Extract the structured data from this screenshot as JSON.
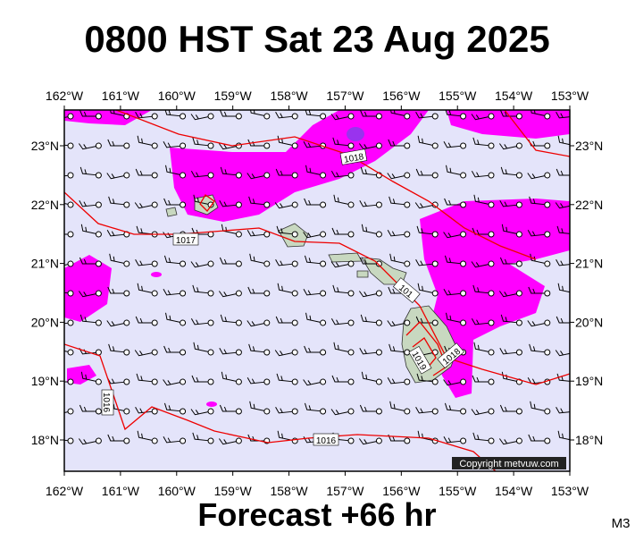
{
  "title": "0800 HST Sat 23 Aug 2025",
  "map": {
    "lon_labels": [
      "162°W",
      "161°W",
      "160°W",
      "159°W",
      "158°W",
      "157°W",
      "156°W",
      "155°W",
      "154°W",
      "153°W"
    ],
    "lat_labels": [
      "23°N",
      "22°N",
      "21°N",
      "20°N",
      "19°N",
      "18°N"
    ],
    "isobar_labels": [
      "1018",
      "1017",
      "101",
      "1016",
      "1016",
      "1019",
      "1018"
    ]
  },
  "copyright": "Copyright metvuw.com",
  "footer": "Forecast +66 hr",
  "code": "M3"
}
